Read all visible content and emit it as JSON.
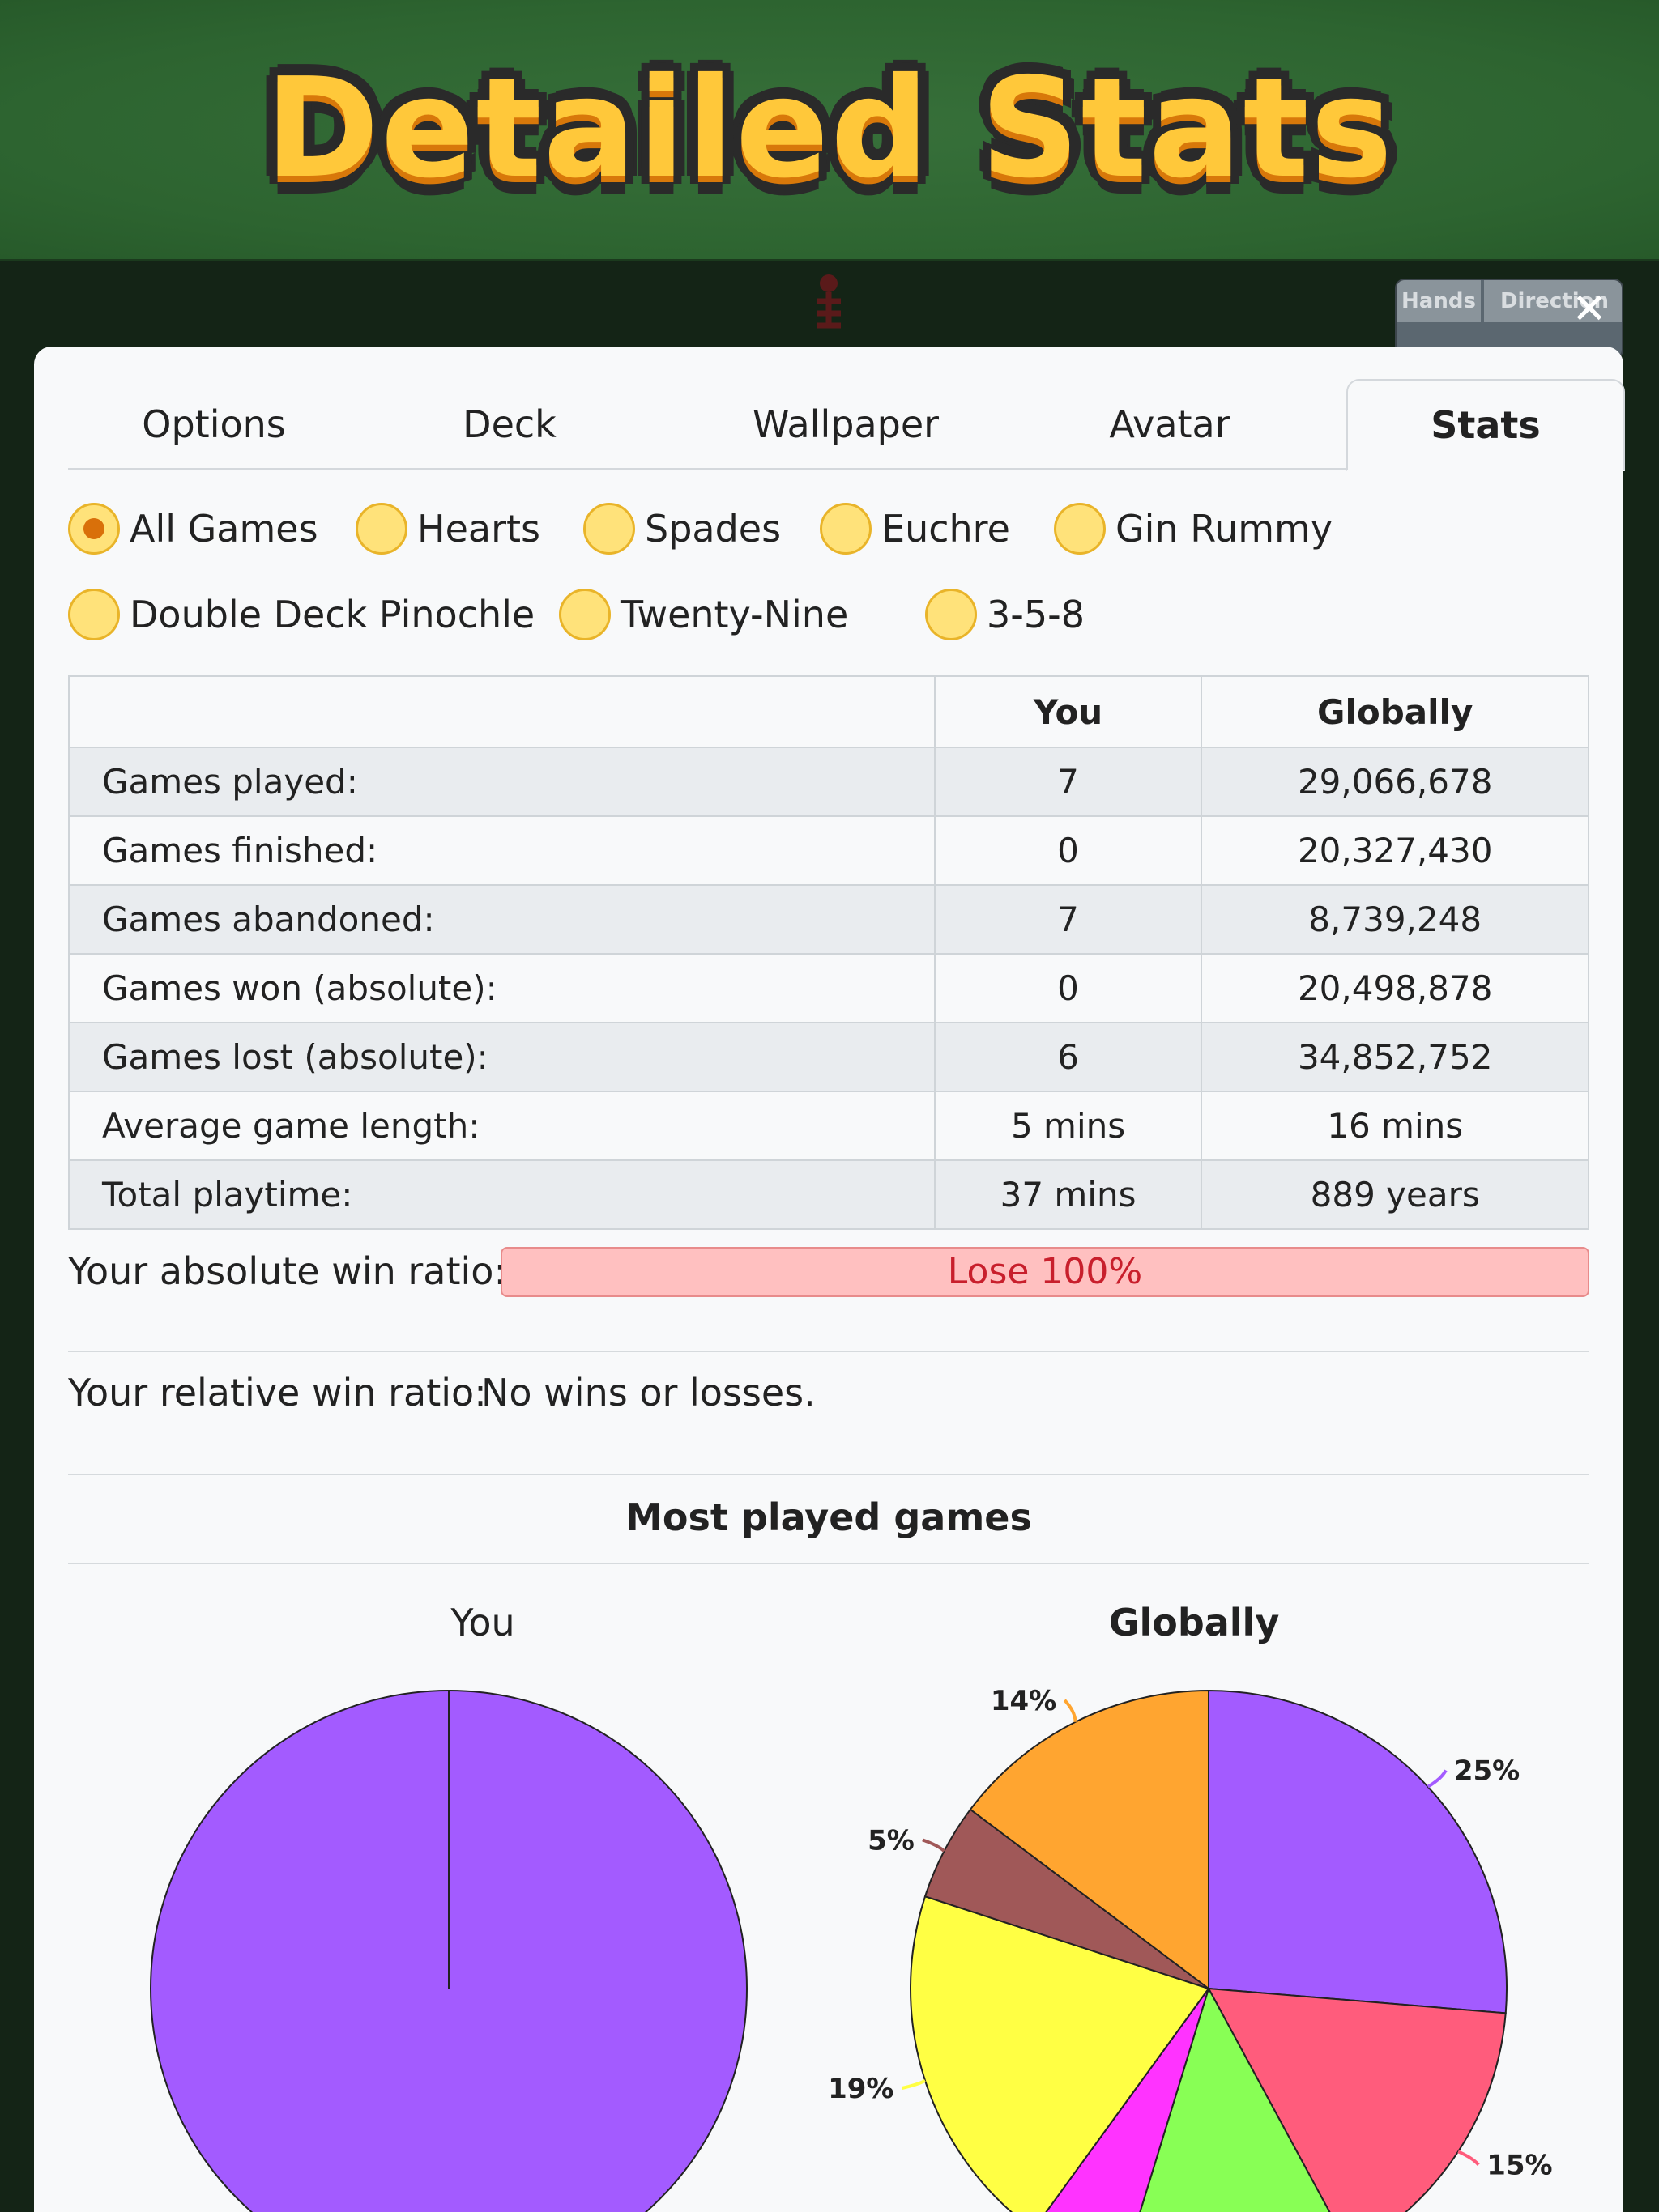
{
  "header": {
    "title": "Detailed Stats"
  },
  "background": {
    "mini_table_headers": [
      "Hands",
      "Direction"
    ]
  },
  "close_icon": "close-icon",
  "tabs": [
    {
      "label": "Options",
      "active": false
    },
    {
      "label": "Deck",
      "active": false
    },
    {
      "label": "Wallpaper",
      "active": false
    },
    {
      "label": "Avatar",
      "active": false
    },
    {
      "label": "Stats",
      "active": true
    }
  ],
  "game_filters": [
    {
      "label": "All Games",
      "selected": true
    },
    {
      "label": "Hearts",
      "selected": false
    },
    {
      "label": "Spades",
      "selected": false
    },
    {
      "label": "Euchre",
      "selected": false
    },
    {
      "label": "Gin Rummy",
      "selected": false
    },
    {
      "label": "Double Deck Pinochle",
      "selected": false
    },
    {
      "label": "Twenty-Nine",
      "selected": false
    },
    {
      "label": "3-5-8",
      "selected": false
    }
  ],
  "stats_table": {
    "columns": [
      "",
      "You",
      "Globally"
    ],
    "rows": [
      {
        "label": "Games played:",
        "you": "7",
        "global": "29,066,678"
      },
      {
        "label": "Games finished:",
        "you": "0",
        "global": "20,327,430"
      },
      {
        "label": "Games abandoned:",
        "you": "7",
        "global": "8,739,248"
      },
      {
        "label": "Games won (absolute):",
        "you": "0",
        "global": "20,498,878"
      },
      {
        "label": "Games lost (absolute):",
        "you": "6",
        "global": "34,852,752"
      },
      {
        "label": "Average game length:",
        "you": "5 mins",
        "global": "16 mins"
      },
      {
        "label": "Total playtime:",
        "you": "37 mins",
        "global": "889 years"
      }
    ]
  },
  "absolute_win": {
    "label": "Your absolute win ratio:",
    "value": "Lose 100%",
    "lose_fraction": 1.0,
    "color": "#ffc0c0"
  },
  "relative_win": {
    "label": "Your relative win ratio:",
    "value": "No wins or losses."
  },
  "most_played": {
    "title": "Most played games",
    "you_title": "You",
    "global_title": "Globally"
  },
  "chart_data": [
    {
      "type": "pie",
      "title": "You",
      "slices": [
        {
          "value": 100,
          "color": "#a35bff"
        }
      ]
    },
    {
      "type": "pie",
      "title": "Globally",
      "slices": [
        {
          "value": 25,
          "label": "25%",
          "color": "#a35bff"
        },
        {
          "value": 15,
          "label": "15%",
          "color": "#ff5c7c"
        },
        {
          "value": 12,
          "label": "",
          "color": "#88ff55"
        },
        {
          "value": 5,
          "label": "",
          "color": "#ff33ff"
        },
        {
          "value": 19,
          "label": "19%",
          "color": "#ffff44"
        },
        {
          "value": 5,
          "label": "5%",
          "color": "#a05858"
        },
        {
          "value": 14,
          "label": "14%",
          "color": "#ffa530"
        }
      ]
    }
  ]
}
